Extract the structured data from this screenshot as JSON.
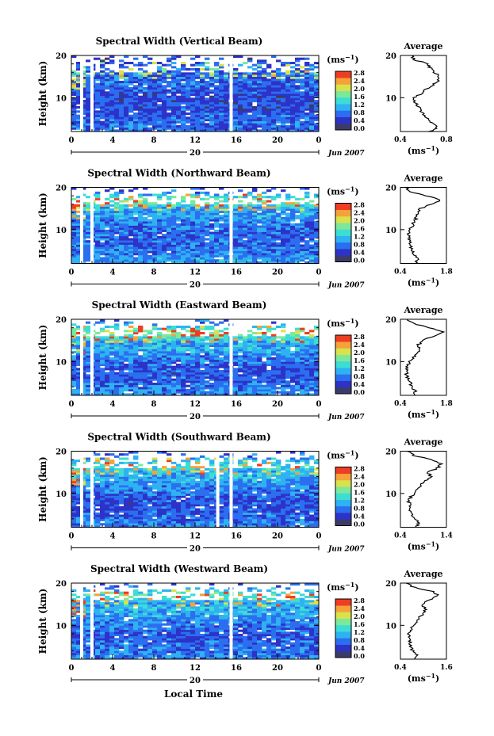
{
  "figure": {
    "xlabel_bottom": "Local Time",
    "colorbar_unit": "(ms",
    "colorbar_unit_exp": "−1",
    "colorbar_unit_close": ")",
    "colorbar_ticks": [
      "0.0",
      "0.4",
      "0.8",
      "1.2",
      "1.6",
      "2.0",
      "2.4",
      "2.8"
    ],
    "colorbar_colors": [
      "#3b3b6b",
      "#2d33c8",
      "#2b6ff0",
      "#2fb2f2",
      "#3dddd4",
      "#7ee89a",
      "#d9e24a",
      "#f5a23a",
      "#ee3d22"
    ],
    "time_ticks": [
      "0",
      "4",
      "8",
      "12",
      "16",
      "20",
      "0"
    ],
    "date_mid": "20",
    "date_label": "Jun 2007",
    "ylabel": "Height (km)",
    "height_ticks": [
      "20",
      "10"
    ],
    "average_title": "Average",
    "average_unit": "(ms",
    "average_unit_exp": "−1",
    "average_unit_close": ")"
  },
  "chart_data": [
    {
      "type": "heatmap",
      "title": "Spectral Width (Vertical Beam)",
      "xlabel": "",
      "ylabel": "Height (km)",
      "xlim": [
        0,
        24
      ],
      "ylim": [
        2,
        20
      ],
      "clim": [
        0.0,
        3.0
      ],
      "gaps_hours": [
        1.0,
        2.0,
        15.5
      ],
      "profile": {
        "xlim": [
          0.4,
          0.8
        ],
        "x_ticks": [
          "0.4",
          "0.8"
        ],
        "heights": [
          2,
          3,
          4,
          5,
          6,
          7,
          8,
          9,
          10,
          11,
          12,
          13,
          14,
          15,
          16,
          17,
          18,
          19,
          20
        ],
        "values": [
          0.66,
          0.72,
          0.68,
          0.63,
          0.6,
          0.58,
          0.55,
          0.53,
          0.52,
          0.58,
          0.62,
          0.68,
          0.72,
          0.74,
          0.7,
          0.66,
          0.64,
          0.52,
          0.5
        ]
      }
    },
    {
      "type": "heatmap",
      "title": "Spectral Width (Northward Beam)",
      "xlabel": "",
      "ylabel": "Height (km)",
      "xlim": [
        0,
        24
      ],
      "ylim": [
        2,
        20
      ],
      "clim": [
        0.0,
        3.0
      ],
      "gaps_hours": [
        1.0,
        2.0,
        15.5
      ],
      "profile": {
        "xlim": [
          0.4,
          1.8
        ],
        "x_ticks": [
          "0.4",
          "1.8"
        ],
        "heights": [
          2,
          3,
          4,
          5,
          6,
          7,
          8,
          9,
          10,
          11,
          12,
          13,
          14,
          15,
          16,
          17,
          18,
          19,
          20
        ],
        "values": [
          0.85,
          0.95,
          0.8,
          0.75,
          0.7,
          0.68,
          0.66,
          0.65,
          0.7,
          0.78,
          0.82,
          0.9,
          0.95,
          1.0,
          1.35,
          1.6,
          1.2,
          0.7,
          0.55
        ]
      }
    },
    {
      "type": "heatmap",
      "title": "Spectral Width (Eastward Beam)",
      "xlabel": "",
      "ylabel": "Height (km)",
      "xlim": [
        0,
        24
      ],
      "ylim": [
        2,
        20
      ],
      "clim": [
        0.0,
        3.0
      ],
      "gaps_hours": [
        1.0,
        2.0,
        15.5
      ],
      "profile": {
        "xlim": [
          0.4,
          1.8
        ],
        "x_ticks": [
          "0.4",
          "1.8"
        ],
        "heights": [
          2,
          3,
          4,
          5,
          6,
          7,
          8,
          9,
          10,
          11,
          12,
          13,
          14,
          15,
          16,
          17,
          18,
          19,
          20
        ],
        "values": [
          0.8,
          0.85,
          0.75,
          0.7,
          0.62,
          0.58,
          0.6,
          0.62,
          0.7,
          0.8,
          0.9,
          1.0,
          0.95,
          1.1,
          1.4,
          1.7,
          1.3,
          0.8,
          0.6
        ]
      }
    },
    {
      "type": "heatmap",
      "title": "Spectral Width (Southward Beam)",
      "xlabel": "",
      "ylabel": "Height (km)",
      "xlim": [
        0,
        24
      ],
      "ylim": [
        2,
        20
      ],
      "clim": [
        0.0,
        3.0
      ],
      "gaps_hours": [
        1.0,
        2.0,
        14.2,
        15.5
      ],
      "profile": {
        "xlim": [
          0.4,
          1.4
        ],
        "x_ticks": [
          "0.4",
          "1.4"
        ],
        "heights": [
          2,
          3,
          4,
          5,
          6,
          7,
          8,
          9,
          10,
          11,
          12,
          13,
          14,
          15,
          16,
          17,
          18,
          19,
          20
        ],
        "values": [
          0.75,
          0.8,
          0.7,
          0.66,
          0.62,
          0.6,
          0.58,
          0.62,
          0.7,
          0.78,
          0.85,
          0.95,
          1.05,
          1.0,
          1.2,
          1.3,
          1.1,
          0.7,
          0.55
        ]
      }
    },
    {
      "type": "heatmap",
      "title": "Spectral Width (Westward Beam)",
      "xlabel": "Local Time",
      "ylabel": "Height (km)",
      "xlim": [
        0,
        24
      ],
      "ylim": [
        2,
        20
      ],
      "clim": [
        0.0,
        3.0
      ],
      "gaps_hours": [
        1.0,
        2.0,
        15.5
      ],
      "profile": {
        "xlim": [
          0.4,
          1.6
        ],
        "x_ticks": [
          "0.4",
          "1.6"
        ],
        "heights": [
          2,
          3,
          4,
          5,
          6,
          7,
          8,
          9,
          10,
          11,
          12,
          13,
          14,
          15,
          16,
          17,
          18,
          19,
          20
        ],
        "values": [
          0.78,
          0.82,
          0.72,
          0.68,
          0.64,
          0.6,
          0.62,
          0.68,
          0.75,
          0.82,
          0.9,
          1.0,
          1.05,
          0.95,
          1.15,
          1.4,
          1.25,
          0.75,
          0.55
        ]
      }
    }
  ]
}
